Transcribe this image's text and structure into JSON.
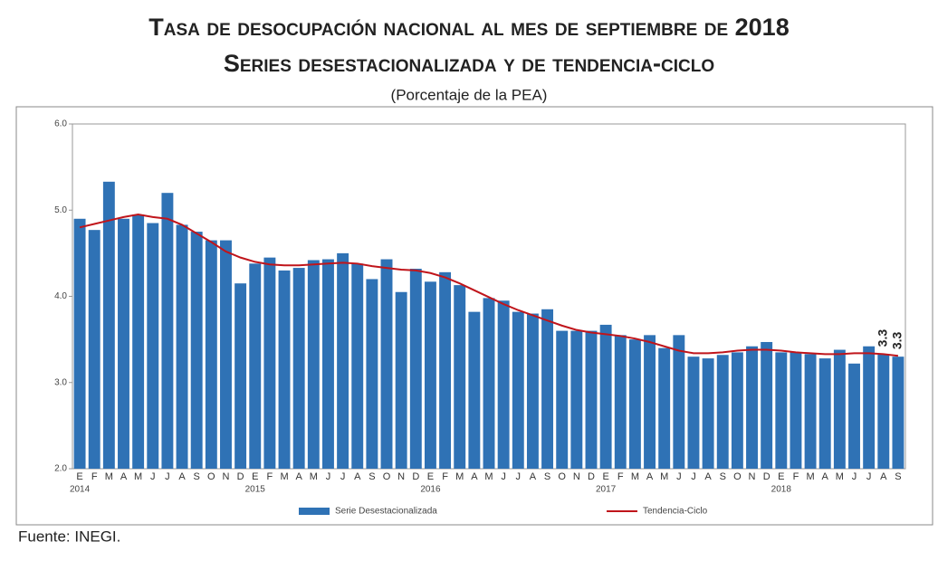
{
  "chart_data": {
    "type": "bar-line",
    "title": "Tasa de desocupación nacional al mes de septiembre de 2018",
    "subtitle": "Series desestacionalizada y de tendencia-ciclo",
    "note": "(Porcentaje de la PEA)",
    "source": "Fuente: INEGI.",
    "categories": [
      "E",
      "F",
      "M",
      "A",
      "M",
      "J",
      "J",
      "A",
      "S",
      "O",
      "N",
      "D",
      "E",
      "F",
      "M",
      "A",
      "M",
      "J",
      "J",
      "A",
      "S",
      "O",
      "N",
      "D",
      "E",
      "F",
      "M",
      "A",
      "M",
      "J",
      "J",
      "A",
      "S",
      "O",
      "N",
      "D",
      "E",
      "F",
      "M",
      "A",
      "M",
      "J",
      "J",
      "A",
      "S",
      "O",
      "N",
      "D",
      "E",
      "F",
      "M",
      "A",
      "M",
      "J",
      "J",
      "A",
      "S"
    ],
    "year_labels": [
      "2014",
      "2015",
      "2016",
      "2017",
      "2018"
    ],
    "ylim": [
      2,
      6
    ],
    "yticks": [
      {
        "value": 2,
        "label": "2.0"
      },
      {
        "value": 3,
        "label": "3.0"
      },
      {
        "value": 4,
        "label": "4.0"
      },
      {
        "value": 5,
        "label": "5.0"
      },
      {
        "value": 6,
        "label": "6.0"
      }
    ],
    "series": [
      {
        "name": "Serie Desestacionalizada",
        "type": "bar",
        "color": "#2f72b5",
        "values": [
          4.9,
          4.77,
          5.33,
          4.9,
          4.95,
          4.85,
          5.2,
          4.83,
          4.75,
          4.65,
          4.65,
          4.15,
          4.38,
          4.45,
          4.3,
          4.33,
          4.42,
          4.43,
          4.5,
          4.38,
          4.2,
          4.43,
          4.05,
          4.32,
          4.17,
          4.28,
          4.13,
          3.82,
          3.98,
          3.95,
          3.82,
          3.8,
          3.85,
          3.6,
          3.6,
          3.6,
          3.67,
          3.55,
          3.5,
          3.55,
          3.4,
          3.55,
          3.3,
          3.28,
          3.32,
          3.35,
          3.42,
          3.47,
          3.35,
          3.35,
          3.33,
          3.28,
          3.38,
          3.22,
          3.42,
          3.33,
          3.3
        ],
        "value_labels": [
          null,
          null,
          null,
          null,
          null,
          null,
          null,
          null,
          null,
          null,
          null,
          null,
          null,
          null,
          null,
          null,
          null,
          null,
          null,
          null,
          null,
          null,
          null,
          null,
          null,
          null,
          null,
          null,
          null,
          null,
          null,
          null,
          null,
          null,
          null,
          null,
          null,
          null,
          null,
          null,
          null,
          null,
          null,
          null,
          null,
          null,
          null,
          null,
          null,
          null,
          null,
          null,
          null,
          null,
          null,
          "3.3",
          "3.3"
        ]
      },
      {
        "name": "Tendencia-Ciclo",
        "type": "line",
        "color": "#c0151b",
        "values": [
          4.8,
          4.84,
          4.88,
          4.92,
          4.95,
          4.92,
          4.9,
          4.83,
          4.73,
          4.63,
          4.52,
          4.45,
          4.4,
          4.37,
          4.36,
          4.36,
          4.37,
          4.38,
          4.39,
          4.38,
          4.35,
          4.33,
          4.31,
          4.3,
          4.27,
          4.22,
          4.15,
          4.07,
          3.99,
          3.91,
          3.84,
          3.78,
          3.72,
          3.66,
          3.61,
          3.58,
          3.56,
          3.54,
          3.51,
          3.47,
          3.42,
          3.37,
          3.34,
          3.34,
          3.35,
          3.37,
          3.38,
          3.38,
          3.37,
          3.35,
          3.34,
          3.33,
          3.33,
          3.34,
          3.34,
          3.33,
          3.31
        ]
      }
    ]
  }
}
